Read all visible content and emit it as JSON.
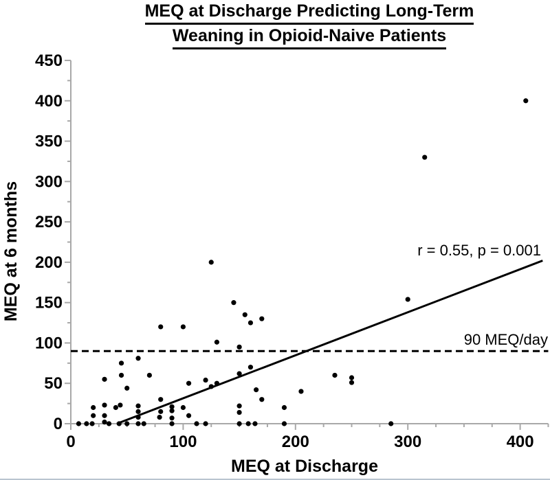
{
  "chart_data": {
    "type": "scatter",
    "title_line1": "MEQ at Discharge Predicting Long-Term",
    "title_line2": "Weaning in Opioid-Naive Patients",
    "xlabel": "MEQ at Discharge",
    "ylabel": "MEQ at 6 months",
    "xlim": [
      0,
      425
    ],
    "ylim": [
      0,
      450
    ],
    "x_major_ticks": [
      0,
      100,
      200,
      300,
      400
    ],
    "y_major_ticks": [
      0,
      50,
      100,
      150,
      200,
      250,
      300,
      350,
      400,
      450
    ],
    "minor_tick_step": 25,
    "grid": false,
    "point_color": "#000000",
    "line_color": "#000000",
    "axis_color": "#a8a8a8",
    "points": [
      [
        7,
        0
      ],
      [
        14,
        0
      ],
      [
        19,
        0
      ],
      [
        34,
        0
      ],
      [
        43,
        0
      ],
      [
        50,
        0
      ],
      [
        60,
        0
      ],
      [
        65,
        0
      ],
      [
        90,
        0
      ],
      [
        112,
        0
      ],
      [
        120,
        0
      ],
      [
        150,
        0
      ],
      [
        158,
        0
      ],
      [
        164,
        0
      ],
      [
        190,
        0
      ],
      [
        285,
        0
      ],
      [
        30,
        2
      ],
      [
        30,
        10
      ],
      [
        30,
        23
      ],
      [
        30,
        55
      ],
      [
        20,
        10
      ],
      [
        20,
        20
      ],
      [
        40,
        20
      ],
      [
        44,
        23
      ],
      [
        50,
        44
      ],
      [
        45,
        60
      ],
      [
        45,
        75
      ],
      [
        60,
        8
      ],
      [
        60,
        15
      ],
      [
        60,
        22
      ],
      [
        60,
        81
      ],
      [
        70,
        60
      ],
      [
        79,
        8
      ],
      [
        80,
        15
      ],
      [
        80,
        30
      ],
      [
        90,
        7
      ],
      [
        90,
        16
      ],
      [
        90,
        21
      ],
      [
        100,
        20
      ],
      [
        105,
        10
      ],
      [
        105,
        50
      ],
      [
        120,
        54
      ],
      [
        125,
        46
      ],
      [
        130,
        50
      ],
      [
        80,
        120
      ],
      [
        100,
        120
      ],
      [
        130,
        101
      ],
      [
        150,
        14
      ],
      [
        150,
        22
      ],
      [
        150,
        62
      ],
      [
        150,
        95
      ],
      [
        145,
        150
      ],
      [
        155,
        135
      ],
      [
        160,
        125
      ],
      [
        170,
        130
      ],
      [
        160,
        70
      ],
      [
        165,
        42
      ],
      [
        170,
        30
      ],
      [
        190,
        20
      ],
      [
        205,
        40
      ],
      [
        235,
        60
      ],
      [
        250,
        51
      ],
      [
        250,
        57
      ],
      [
        125,
        200
      ],
      [
        300,
        154
      ],
      [
        315,
        330
      ],
      [
        405,
        400
      ]
    ],
    "regression_line": {
      "x1": 41,
      "y1": 0,
      "x2": 420,
      "y2": 202,
      "label": "r = 0.55, p = 0.001"
    },
    "threshold_line": {
      "y": 90,
      "label": "90 MEQ/day",
      "style": "dashed"
    }
  }
}
